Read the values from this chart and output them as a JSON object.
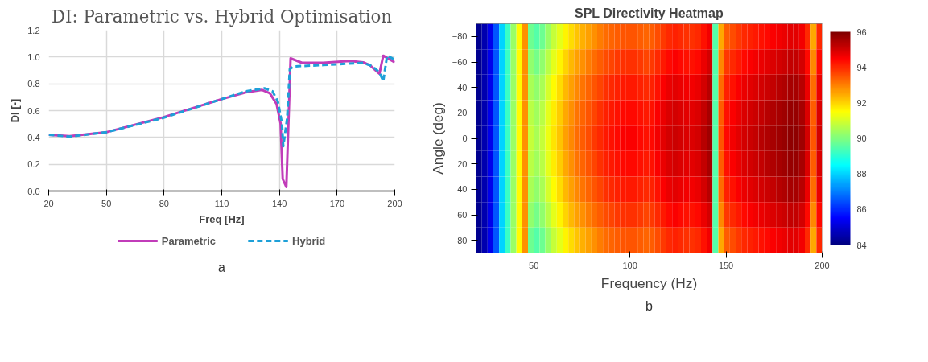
{
  "chart_data": [
    {
      "type": "line",
      "title": "DI: Parametric vs. Hybrid Optimisation",
      "xlabel": "Freq [Hz]",
      "ylabel": "DI [-]",
      "xlim": [
        20,
        200
      ],
      "xticks": [
        20,
        50,
        80,
        110,
        140,
        170,
        200
      ],
      "ylim": [
        0,
        1.2
      ],
      "yticks": [
        {
          "value": 0,
          "label": "0.0"
        },
        {
          "value": 0.2,
          "label": "0.2"
        },
        {
          "value": 0.4,
          "label": "0.4"
        },
        {
          "value": 0.6,
          "label": "0.6"
        },
        {
          "value": 0.8,
          "label": "0.8"
        },
        {
          "value": 1.0,
          "label": "1.0"
        },
        {
          "value": 1.2,
          "label": "1.2"
        }
      ],
      "grid": true,
      "legend": "bottom",
      "annotations": [
        "a"
      ],
      "series": [
        {
          "name": "Parametric",
          "color": "#c13cb9",
          "line_style": "solid",
          "x": [
            20,
            30.8,
            50.3,
            79.4,
            110,
            122.5,
            130.8,
            135,
            138.5,
            140.6,
            141.7,
            143.6,
            145.8,
            151.7,
            162.8,
            176.7,
            183.6,
            187,
            192,
            194,
            200
          ],
          "values": [
            0.42,
            0.41,
            0.44,
            0.55,
            0.686,
            0.736,
            0.755,
            0.73,
            0.65,
            0.505,
            0.09,
            0.03,
            0.99,
            0.957,
            0.957,
            0.97,
            0.96,
            0.94,
            0.875,
            1.01,
            0.96
          ]
        },
        {
          "name": "Hybrid",
          "color": "#1ea0d8",
          "line_style": "dashed",
          "x": [
            20,
            30.8,
            50.3,
            79.4,
            110,
            122.5,
            132.2,
            136.4,
            139.2,
            141.3,
            142,
            144,
            145.4,
            147.5,
            162.8,
            183.6,
            188.5,
            192,
            194,
            196,
            200
          ],
          "values": [
            0.42,
            0.406,
            0.44,
            0.545,
            0.686,
            0.744,
            0.767,
            0.744,
            0.668,
            0.505,
            0.334,
            0.54,
            0.91,
            0.93,
            0.94,
            0.957,
            0.93,
            0.885,
            0.82,
            1.01,
            0.98
          ]
        }
      ]
    },
    {
      "type": "heatmap",
      "title": "SPL Directivity Heatmap",
      "xlabel": "Frequency (Hz)",
      "ylabel": "Angle (deg)",
      "xlim": [
        20,
        200
      ],
      "xticks": [
        50,
        100,
        150,
        200
      ],
      "ylim": [
        90,
        -90
      ],
      "yticks": [
        -80,
        -60,
        -40,
        -20,
        0,
        20,
        40,
        60,
        80
      ],
      "clim": [
        84,
        96
      ],
      "cticks": [
        84,
        86,
        88,
        90,
        92,
        94,
        96
      ],
      "annotations": [
        "b"
      ],
      "cells": [
        [
          84.2,
          84.6,
          85.3,
          86.5,
          88.0,
          89.2,
          90.3,
          91.5,
          92.8,
          89.8,
          89.5,
          89.8,
          90.3,
          90.8,
          91.2,
          91.6,
          91.9,
          92.2,
          92.4,
          92.6,
          92.8,
          93.0,
          93.2,
          93.3,
          93.4,
          93.5,
          93.5,
          93.5,
          93.4,
          93.3,
          93.4,
          93.6,
          93.8,
          94.0,
          94.1,
          94.0,
          93.9,
          93.9,
          94.0,
          94.3,
          94.6,
          89.5,
          92.5,
          93.4,
          93.6,
          93.8,
          94.0,
          94.1,
          94.2,
          94.3,
          94.4,
          94.5,
          94.6,
          94.7,
          94.8,
          94.8,
          94.6,
          94.0,
          92.5,
          94.0
        ],
        [
          84.2,
          84.6,
          85.3,
          86.5,
          88.0,
          89.2,
          90.3,
          91.5,
          92.8,
          90.2,
          89.9,
          90.2,
          90.7,
          91.2,
          91.6,
          92.0,
          92.3,
          92.6,
          92.8,
          93.0,
          93.2,
          93.4,
          93.6,
          93.7,
          93.8,
          93.9,
          93.9,
          93.9,
          93.8,
          93.7,
          93.8,
          94.0,
          94.2,
          94.4,
          94.5,
          94.4,
          94.3,
          94.3,
          94.4,
          94.7,
          95.0,
          89.5,
          92.9,
          93.8,
          94.0,
          94.2,
          94.4,
          94.5,
          94.6,
          94.7,
          94.8,
          94.9,
          95.0,
          95.1,
          95.2,
          95.2,
          95.0,
          94.4,
          92.9,
          94.4
        ],
        [
          84.2,
          84.6,
          85.3,
          86.5,
          88.0,
          89.2,
          90.3,
          91.5,
          92.8,
          90.5,
          90.2,
          90.5,
          91.0,
          91.5,
          91.9,
          92.3,
          92.6,
          92.9,
          93.1,
          93.3,
          93.5,
          93.7,
          93.9,
          94.0,
          94.1,
          94.2,
          94.2,
          94.2,
          94.1,
          94.0,
          94.1,
          94.3,
          94.5,
          94.7,
          94.8,
          94.7,
          94.6,
          94.6,
          94.7,
          95.0,
          95.3,
          89.5,
          93.2,
          94.1,
          94.3,
          94.5,
          94.7,
          94.8,
          94.9,
          95.0,
          95.1,
          95.2,
          95.3,
          95.4,
          95.5,
          95.5,
          95.3,
          94.7,
          93.2,
          94.7
        ],
        [
          84.2,
          84.6,
          85.3,
          86.5,
          88.0,
          89.2,
          90.3,
          91.5,
          92.8,
          90.7,
          90.4,
          90.7,
          91.2,
          91.7,
          92.1,
          92.5,
          92.8,
          93.1,
          93.3,
          93.5,
          93.7,
          93.9,
          94.1,
          94.2,
          94.3,
          94.4,
          94.4,
          94.4,
          94.3,
          94.2,
          94.3,
          94.5,
          94.7,
          94.9,
          95.0,
          94.9,
          94.8,
          94.8,
          94.9,
          95.2,
          95.5,
          89.5,
          93.4,
          94.3,
          94.5,
          94.7,
          94.9,
          95.0,
          95.1,
          95.2,
          95.3,
          95.4,
          95.5,
          95.6,
          95.7,
          95.7,
          95.5,
          94.9,
          93.4,
          94.9
        ],
        [
          84.2,
          84.6,
          85.3,
          86.5,
          88.0,
          89.2,
          90.3,
          91.5,
          92.8,
          90.8,
          90.5,
          90.8,
          91.3,
          91.8,
          92.2,
          92.6,
          92.9,
          93.2,
          93.4,
          93.6,
          93.8,
          94.0,
          94.2,
          94.3,
          94.4,
          94.5,
          94.5,
          94.5,
          94.4,
          94.3,
          94.4,
          94.6,
          94.8,
          95.0,
          95.1,
          95.0,
          94.9,
          94.9,
          95.0,
          95.3,
          95.6,
          89.5,
          93.5,
          94.4,
          94.6,
          94.8,
          95.0,
          95.1,
          95.2,
          95.3,
          95.4,
          95.5,
          95.6,
          95.7,
          95.8,
          95.8,
          95.6,
          95.0,
          93.5,
          95.0
        ],
        [
          84.2,
          84.6,
          85.3,
          86.5,
          88.0,
          89.2,
          90.3,
          91.5,
          92.8,
          90.7,
          90.4,
          90.7,
          91.2,
          91.7,
          92.1,
          92.5,
          92.8,
          93.1,
          93.3,
          93.5,
          93.7,
          93.9,
          94.1,
          94.2,
          94.3,
          94.4,
          94.4,
          94.4,
          94.3,
          94.2,
          94.3,
          94.5,
          94.7,
          94.9,
          95.0,
          94.9,
          94.8,
          94.8,
          94.9,
          95.2,
          95.5,
          89.5,
          93.4,
          94.3,
          94.5,
          94.7,
          94.9,
          95.0,
          95.1,
          95.2,
          95.3,
          95.4,
          95.5,
          95.6,
          95.7,
          95.7,
          95.5,
          94.9,
          93.4,
          94.9
        ],
        [
          84.2,
          84.6,
          85.3,
          86.5,
          88.0,
          89.2,
          90.3,
          91.5,
          92.8,
          90.5,
          90.2,
          90.5,
          91.0,
          91.5,
          91.9,
          92.3,
          92.6,
          92.9,
          93.1,
          93.3,
          93.5,
          93.7,
          93.9,
          94.0,
          94.1,
          94.2,
          94.2,
          94.2,
          94.1,
          94.0,
          94.1,
          94.3,
          94.5,
          94.7,
          94.8,
          94.7,
          94.6,
          94.6,
          94.7,
          95.0,
          95.3,
          89.5,
          93.2,
          94.1,
          94.3,
          94.5,
          94.7,
          94.8,
          94.9,
          95.0,
          95.1,
          95.2,
          95.3,
          95.4,
          95.5,
          95.5,
          95.3,
          94.7,
          93.2,
          94.7
        ],
        [
          84.2,
          84.6,
          85.3,
          86.5,
          88.0,
          89.2,
          90.3,
          91.5,
          92.8,
          90.2,
          89.9,
          90.2,
          90.7,
          91.2,
          91.6,
          92.0,
          92.3,
          92.6,
          92.8,
          93.0,
          93.2,
          93.4,
          93.6,
          93.7,
          93.8,
          93.9,
          93.9,
          93.9,
          93.8,
          93.7,
          93.8,
          94.0,
          94.2,
          94.4,
          94.5,
          94.4,
          94.3,
          94.3,
          94.4,
          94.7,
          95.0,
          89.5,
          92.9,
          93.8,
          94.0,
          94.2,
          94.4,
          94.5,
          94.6,
          94.7,
          94.8,
          94.9,
          95.0,
          95.1,
          95.2,
          95.2,
          95.0,
          94.4,
          92.9,
          94.4
        ],
        [
          84.2,
          84.6,
          85.3,
          86.5,
          88.0,
          89.2,
          90.3,
          91.5,
          92.8,
          89.8,
          89.5,
          89.8,
          90.3,
          90.8,
          91.2,
          91.6,
          91.9,
          92.2,
          92.4,
          92.6,
          92.8,
          93.0,
          93.2,
          93.3,
          93.4,
          93.5,
          93.5,
          93.5,
          93.4,
          93.3,
          93.4,
          93.6,
          93.8,
          94.0,
          94.1,
          94.0,
          93.9,
          93.9,
          94.0,
          94.3,
          94.6,
          89.5,
          92.5,
          93.4,
          93.6,
          93.8,
          94.0,
          94.1,
          94.2,
          94.3,
          94.4,
          94.5,
          94.6,
          94.7,
          94.8,
          94.8,
          94.6,
          94.0,
          92.5,
          94.0
        ]
      ]
    }
  ]
}
